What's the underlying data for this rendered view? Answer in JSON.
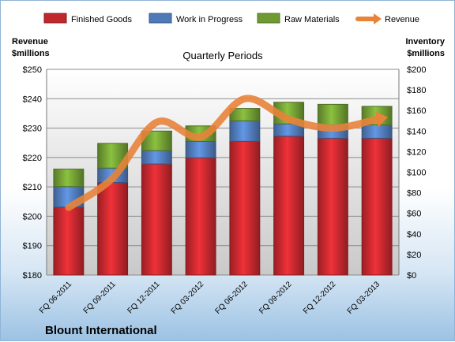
{
  "chart_data": {
    "type": "bar",
    "title": "Quarterly Periods",
    "company": "Blount International",
    "left_axis_label": [
      "Revenue",
      "$millions"
    ],
    "right_axis_label": [
      "Inventory",
      "$millions"
    ],
    "categories": [
      "FQ 06-2011",
      "FQ 09-2011",
      "FQ 12-2011",
      "FQ 03-2012",
      "FQ 06-2012",
      "FQ 09-2012",
      "FQ 12-2012",
      "FQ 03-2013"
    ],
    "left_ticks": [
      "$180",
      "$190",
      "$200",
      "$210",
      "$220",
      "$230",
      "$240",
      "$250"
    ],
    "right_ticks": [
      "$0",
      "$20",
      "$40",
      "$60",
      "$80",
      "$100",
      "$120",
      "$140",
      "$160",
      "$180",
      "$200"
    ],
    "left_range": [
      180,
      250
    ],
    "right_range": [
      0,
      200
    ],
    "stacked": true,
    "grid": true,
    "legend_position": "top",
    "series": [
      {
        "name": "Finished Goods",
        "axis": "right",
        "color": "#c0272d",
        "values": [
          66,
          90,
          108,
          114,
          130,
          135,
          133,
          133
        ]
      },
      {
        "name": "Work in Progress",
        "axis": "right",
        "color": "#4f79b7",
        "values": [
          20,
          14,
          13,
          16,
          20,
          12,
          13,
          13
        ]
      },
      {
        "name": "Raw Materials",
        "axis": "right",
        "color": "#6f9a33",
        "values": [
          17,
          24,
          19,
          15,
          12,
          21,
          20,
          18
        ]
      },
      {
        "name": "Revenue",
        "axis": "left",
        "type": "line",
        "color": "#e8833a",
        "values": [
          203,
          213,
          232,
          227,
          240,
          233,
          230,
          233
        ]
      }
    ]
  }
}
